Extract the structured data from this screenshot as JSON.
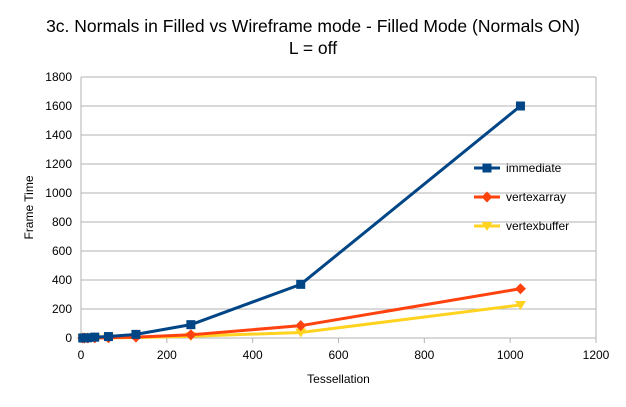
{
  "chart_data": {
    "type": "line",
    "title": "3c. Normals in Filled vs Wireframe mode - Filled Mode (Normals ON)",
    "subtitle": "L = off",
    "xlabel": "Tessellation",
    "ylabel": "Frame Time",
    "xlim": [
      0,
      1200
    ],
    "ylim": [
      0,
      1800
    ],
    "x_ticks": [
      0,
      200,
      400,
      600,
      800,
      1000,
      1200
    ],
    "y_ticks": [
      0,
      200,
      400,
      600,
      800,
      1000,
      1200,
      1400,
      1600,
      1800
    ],
    "grid": "horizontal",
    "legend_position": "right",
    "x": [
      4,
      8,
      16,
      32,
      64,
      128,
      256,
      512,
      1024
    ],
    "series": [
      {
        "name": "immediate",
        "color": "#004586",
        "marker": "square",
        "values": [
          0.2,
          0.5,
          1.5,
          6,
          10,
          25,
          92,
          370,
          1600
        ]
      },
      {
        "name": "vertexarray",
        "color": "#ff420e",
        "marker": "diamond",
        "values": [
          0.05,
          0.1,
          0.3,
          1,
          2,
          6,
          22,
          85,
          340
        ]
      },
      {
        "name": "vertexbuffer",
        "color": "#ffd320",
        "marker": "triangle",
        "values": [
          0.03,
          0.06,
          0.2,
          0.6,
          1.5,
          3,
          12,
          38,
          228
        ]
      }
    ]
  }
}
